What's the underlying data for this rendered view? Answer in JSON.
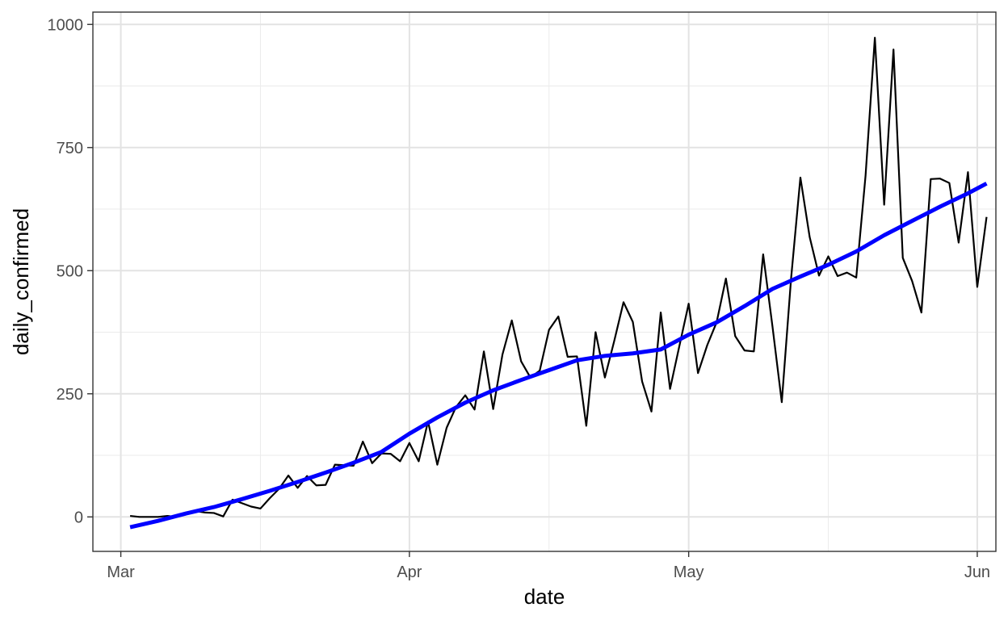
{
  "chart_data": {
    "type": "line",
    "xlabel": "date",
    "ylabel": "daily_confirmed",
    "x_axis": {
      "type": "date",
      "range": [
        "2020-02-27",
        "2020-06-03"
      ],
      "ticks": [
        {
          "date": "2020-03-01",
          "label": "Mar"
        },
        {
          "date": "2020-04-01",
          "label": "Apr"
        },
        {
          "date": "2020-05-01",
          "label": "May"
        },
        {
          "date": "2020-06-01",
          "label": "Jun"
        }
      ],
      "minor_ticks": [
        "2020-03-16",
        "2020-04-16",
        "2020-05-16"
      ]
    },
    "y_axis": {
      "range": [
        -70,
        1025
      ],
      "ticks": [
        0,
        250,
        500,
        750,
        1000
      ],
      "minor_ticks": [
        125,
        375,
        625,
        875
      ]
    },
    "grid": true,
    "theme": "bw",
    "series": [
      {
        "kind": "line",
        "color": "#000000",
        "points": [
          [
            "2020-03-02",
            2
          ],
          [
            "2020-03-03",
            0
          ],
          [
            "2020-03-04",
            0
          ],
          [
            "2020-03-05",
            0
          ],
          [
            "2020-03-06",
            2
          ],
          [
            "2020-03-07",
            0
          ],
          [
            "2020-03-08",
            5
          ],
          [
            "2020-03-09",
            12
          ],
          [
            "2020-03-10",
            9
          ],
          [
            "2020-03-11",
            8
          ],
          [
            "2020-03-12",
            1
          ],
          [
            "2020-03-13",
            35
          ],
          [
            "2020-03-14",
            28
          ],
          [
            "2020-03-15",
            21
          ],
          [
            "2020-03-16",
            17
          ],
          [
            "2020-03-17",
            38
          ],
          [
            "2020-03-18",
            57
          ],
          [
            "2020-03-19",
            84
          ],
          [
            "2020-03-20",
            59
          ],
          [
            "2020-03-21",
            83
          ],
          [
            "2020-03-22",
            64
          ],
          [
            "2020-03-23",
            65
          ],
          [
            "2020-03-24",
            106
          ],
          [
            "2020-03-25",
            105
          ],
          [
            "2020-03-26",
            104
          ],
          [
            "2020-03-27",
            153
          ],
          [
            "2020-03-28",
            109
          ],
          [
            "2020-03-29",
            129
          ],
          [
            "2020-03-30",
            128
          ],
          [
            "2020-03-31",
            113
          ],
          [
            "2020-04-01",
            150
          ],
          [
            "2020-04-02",
            113
          ],
          [
            "2020-04-03",
            194
          ],
          [
            "2020-04-04",
            106
          ],
          [
            "2020-04-05",
            181
          ],
          [
            "2020-04-06",
            223
          ],
          [
            "2020-04-07",
            247
          ],
          [
            "2020-04-08",
            218
          ],
          [
            "2020-04-09",
            336
          ],
          [
            "2020-04-10",
            219
          ],
          [
            "2020-04-11",
            330
          ],
          [
            "2020-04-12",
            399
          ],
          [
            "2020-04-13",
            316
          ],
          [
            "2020-04-14",
            283
          ],
          [
            "2020-04-15",
            297
          ],
          [
            "2020-04-16",
            380
          ],
          [
            "2020-04-17",
            407
          ],
          [
            "2020-04-18",
            325
          ],
          [
            "2020-04-19",
            326
          ],
          [
            "2020-04-20",
            185
          ],
          [
            "2020-04-21",
            375
          ],
          [
            "2020-04-22",
            283
          ],
          [
            "2020-04-23",
            357
          ],
          [
            "2020-04-24",
            436
          ],
          [
            "2020-04-25",
            396
          ],
          [
            "2020-04-26",
            275
          ],
          [
            "2020-04-27",
            214
          ],
          [
            "2020-04-28",
            415
          ],
          [
            "2020-04-29",
            260
          ],
          [
            "2020-04-30",
            347
          ],
          [
            "2020-05-01",
            433
          ],
          [
            "2020-05-02",
            292
          ],
          [
            "2020-05-03",
            349
          ],
          [
            "2020-05-04",
            395
          ],
          [
            "2020-05-05",
            484
          ],
          [
            "2020-05-06",
            367
          ],
          [
            "2020-05-07",
            338
          ],
          [
            "2020-05-08",
            336
          ],
          [
            "2020-05-09",
            533
          ],
          [
            "2020-05-10",
            387
          ],
          [
            "2020-05-11",
            233
          ],
          [
            "2020-05-12",
            484
          ],
          [
            "2020-05-13",
            689
          ],
          [
            "2020-05-14",
            568
          ],
          [
            "2020-05-15",
            490
          ],
          [
            "2020-05-16",
            529
          ],
          [
            "2020-05-17",
            489
          ],
          [
            "2020-05-18",
            496
          ],
          [
            "2020-05-19",
            486
          ],
          [
            "2020-05-20",
            693
          ],
          [
            "2020-05-21",
            973
          ],
          [
            "2020-05-22",
            634
          ],
          [
            "2020-05-23",
            949
          ],
          [
            "2020-05-24",
            526
          ],
          [
            "2020-05-25",
            479
          ],
          [
            "2020-05-26",
            415
          ],
          [
            "2020-05-27",
            686
          ],
          [
            "2020-05-28",
            687
          ],
          [
            "2020-05-29",
            678
          ],
          [
            "2020-05-30",
            557
          ],
          [
            "2020-05-31",
            700
          ],
          [
            "2020-06-01",
            467
          ],
          [
            "2020-06-02",
            609
          ]
        ]
      },
      {
        "kind": "smooth",
        "color": "#0000ff",
        "points": [
          [
            "2020-03-02",
            -21
          ],
          [
            "2020-03-05",
            -8
          ],
          [
            "2020-03-08",
            7
          ],
          [
            "2020-03-11",
            20
          ],
          [
            "2020-03-14",
            36
          ],
          [
            "2020-03-17",
            53
          ],
          [
            "2020-03-20",
            71
          ],
          [
            "2020-03-23",
            90
          ],
          [
            "2020-03-26",
            110
          ],
          [
            "2020-03-29",
            132
          ],
          [
            "2020-04-01",
            169
          ],
          [
            "2020-04-04",
            202
          ],
          [
            "2020-04-07",
            232
          ],
          [
            "2020-04-10",
            257
          ],
          [
            "2020-04-13",
            278
          ],
          [
            "2020-04-16",
            298
          ],
          [
            "2020-04-19",
            318
          ],
          [
            "2020-04-22",
            327
          ],
          [
            "2020-04-25",
            332
          ],
          [
            "2020-04-28",
            340
          ],
          [
            "2020-05-01",
            370
          ],
          [
            "2020-05-04",
            395
          ],
          [
            "2020-05-07",
            428
          ],
          [
            "2020-05-10",
            463
          ],
          [
            "2020-05-13",
            488
          ],
          [
            "2020-05-16",
            512
          ],
          [
            "2020-05-19",
            539
          ],
          [
            "2020-05-22",
            572
          ],
          [
            "2020-05-25",
            601
          ],
          [
            "2020-05-28",
            630
          ],
          [
            "2020-05-31",
            657
          ],
          [
            "2020-06-02",
            677
          ]
        ]
      }
    ]
  }
}
